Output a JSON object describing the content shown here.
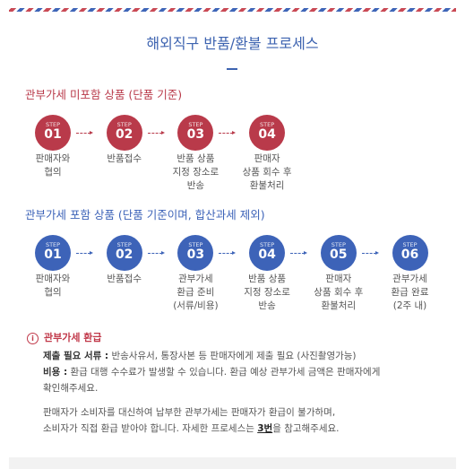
{
  "header": {
    "title": "해외직구 반품/환불 프로세스"
  },
  "sections": [
    {
      "title": "관부가세 미포함 상품 (단품 기준)",
      "theme": "red",
      "steps": [
        {
          "step": "STEP",
          "num": "01",
          "label": [
            "판매자와",
            "협의"
          ]
        },
        {
          "step": "STEP",
          "num": "02",
          "label": [
            "반품접수"
          ]
        },
        {
          "step": "STEP",
          "num": "03",
          "label": [
            "반품 상품",
            "지정 장소로",
            "반송"
          ]
        },
        {
          "step": "STEP",
          "num": "04",
          "label": [
            "판매자",
            "상품 회수 후",
            "환불처리"
          ]
        }
      ]
    },
    {
      "title": "관부가세 포함 상품 (단품 기준이며, 합산과세 제외)",
      "theme": "blue",
      "steps": [
        {
          "step": "STEP",
          "num": "01",
          "label": [
            "판매자와",
            "협의"
          ]
        },
        {
          "step": "STEP",
          "num": "02",
          "label": [
            "반품접수"
          ]
        },
        {
          "step": "STEP",
          "num": "03",
          "label": [
            "관부가세",
            "환급 준비",
            "(서류/비용)"
          ]
        },
        {
          "step": "STEP",
          "num": "04",
          "label": [
            "반품 상품",
            "지정 장소로",
            "반송"
          ]
        },
        {
          "step": "STEP",
          "num": "05",
          "label": [
            "판매자",
            "상품 회수 후",
            "환불처리"
          ]
        },
        {
          "step": "STEP",
          "num": "06",
          "label": [
            "관부가세",
            "환급 완료",
            "(2주 내)"
          ]
        }
      ]
    }
  ],
  "notice": {
    "title": "관부가세 환급",
    "items": [
      {
        "label": "제출 필요 서류 :",
        "lines": [
          " 반송사유서, 통장사본 등 판매자에게 제출 필요 (사진촬영가능)"
        ]
      },
      {
        "label": "비용 :",
        "lines": [
          " 환급 대행 수수료가 발생할 수 있습니다. 환급 예상 관부가세 금액은 판매자에게",
          "확인해주세요."
        ]
      }
    ],
    "paragraph": [
      "판매자가 소비자를 대신하여 납부한 관부가세는 판매자가 환급이 불가하며,"
    ],
    "last_line": {
      "before": "소비자가 직접 환급 받아야 합니다. 자세한 프로세스는 ",
      "link": "3번",
      "after": "을 참고해주세요."
    }
  }
}
